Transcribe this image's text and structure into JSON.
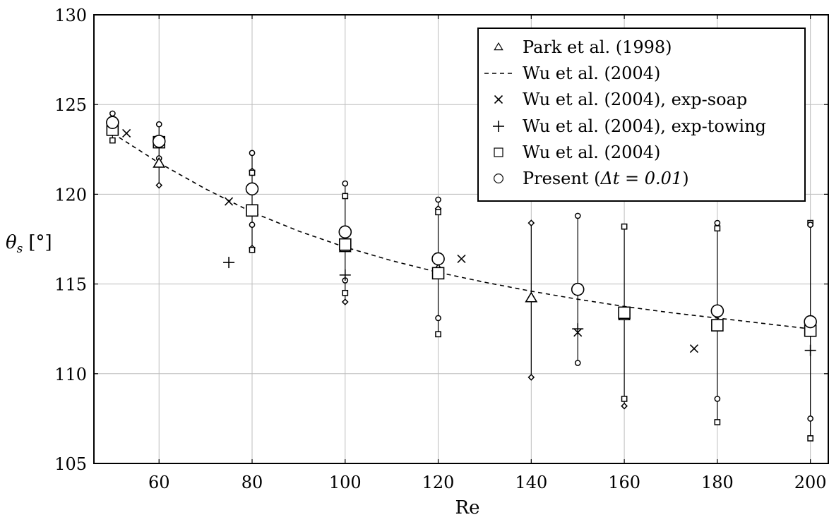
{
  "chart_data": {
    "type": "scatter",
    "title": "",
    "xlabel": "Re",
    "ylabel": "θs [°]",
    "ylabel_sub": "s",
    "ylabel_unit": "[°]",
    "xlim": [
      46,
      204
    ],
    "ylim": [
      105,
      130
    ],
    "xticks": [
      60,
      80,
      100,
      120,
      140,
      160,
      180,
      200
    ],
    "yticks": [
      105,
      110,
      115,
      120,
      125,
      130
    ],
    "grid": true,
    "legend_position": "top-right",
    "series": [
      {
        "name": "Park et al. (1998)",
        "marker": "triangle",
        "points": [
          [
            50,
            123.6
          ],
          [
            60,
            121.7
          ],
          [
            80,
            119.1
          ],
          [
            100,
            117.0
          ],
          [
            120,
            115.8
          ],
          [
            140,
            114.2
          ],
          [
            160,
            113.2
          ]
        ]
      },
      {
        "name": "Wu et al. (2004)",
        "marker": "dashed-line",
        "points": [
          [
            50,
            123.4
          ],
          [
            60,
            121.75
          ],
          [
            70,
            120.3
          ],
          [
            80,
            119.0
          ],
          [
            90,
            117.95
          ],
          [
            100,
            117.05
          ],
          [
            110,
            116.3
          ],
          [
            120,
            115.65
          ],
          [
            130,
            115.1
          ],
          [
            140,
            114.6
          ],
          [
            150,
            114.15
          ],
          [
            160,
            113.75
          ],
          [
            170,
            113.4
          ],
          [
            180,
            113.1
          ],
          [
            190,
            112.8
          ],
          [
            200,
            112.5
          ]
        ]
      },
      {
        "name": "Wu et al. (2004), exp-soap",
        "marker": "x",
        "points": [
          [
            53,
            123.4
          ],
          [
            75,
            119.6
          ],
          [
            125,
            116.4
          ],
          [
            150,
            112.3
          ],
          [
            175,
            111.4
          ]
        ]
      },
      {
        "name": "Wu et al. (2004), exp-towing",
        "marker": "plus",
        "points": [
          [
            75,
            116.2
          ],
          [
            100,
            115.5
          ],
          [
            150,
            112.5
          ],
          [
            200,
            111.3
          ]
        ]
      },
      {
        "name": "Wu et al. (2004)",
        "marker": "square",
        "points": [
          [
            50,
            123.6
          ],
          [
            60,
            122.9
          ],
          [
            80,
            119.1
          ],
          [
            100,
            117.2
          ],
          [
            120,
            115.6
          ],
          [
            160,
            113.4
          ],
          [
            180,
            112.7
          ],
          [
            200,
            112.4
          ]
        ]
      },
      {
        "name": "Present (Δt = 0.01)",
        "legend_prefix": "Present (",
        "legend_math": "Δt = 0.01",
        "legend_suffix": ")",
        "marker": "circle",
        "points": [
          [
            50,
            124.0
          ],
          [
            60,
            122.95
          ],
          [
            80,
            120.3
          ],
          [
            100,
            117.9
          ],
          [
            120,
            116.4
          ],
          [
            150,
            114.7
          ],
          [
            180,
            113.5
          ],
          [
            200,
            112.9
          ]
        ]
      }
    ],
    "range_bars": [
      {
        "x": 50,
        "min": 123.0,
        "max": 124.5
      },
      {
        "x": 60,
        "min": 120.5,
        "max": 123.9
      },
      {
        "x": 80,
        "min": 116.9,
        "max": 122.3
      },
      {
        "x": 100,
        "min": 114.0,
        "max": 120.6
      },
      {
        "x": 120,
        "min": 112.2,
        "max": 119.7
      },
      {
        "x": 140,
        "min": 109.8,
        "max": 118.4
      },
      {
        "x": 150,
        "min": 110.6,
        "max": 118.8
      },
      {
        "x": 160,
        "min": 108.2,
        "max": 118.2
      },
      {
        "x": 180,
        "min": 107.3,
        "max": 118.4
      },
      {
        "x": 200,
        "min": 106.4,
        "max": 118.4
      }
    ],
    "range_markers": [
      {
        "x": 50,
        "y": 124.5,
        "marker": "small-circle"
      },
      {
        "x": 50,
        "y": 123.6,
        "marker": "small-circle"
      },
      {
        "x": 50,
        "y": 123.0,
        "marker": "small-square"
      },
      {
        "x": 60,
        "y": 123.9,
        "marker": "small-circle"
      },
      {
        "x": 60,
        "y": 122.9,
        "marker": "small-diamond"
      },
      {
        "x": 60,
        "y": 122.0,
        "marker": "small-circle"
      },
      {
        "x": 60,
        "y": 120.5,
        "marker": "small-diamond"
      },
      {
        "x": 80,
        "y": 122.3,
        "marker": "small-circle"
      },
      {
        "x": 80,
        "y": 121.3,
        "marker": "small-diamond"
      },
      {
        "x": 80,
        "y": 121.2,
        "marker": "small-square"
      },
      {
        "x": 80,
        "y": 118.3,
        "marker": "small-circle"
      },
      {
        "x": 80,
        "y": 117.0,
        "marker": "small-diamond"
      },
      {
        "x": 80,
        "y": 116.9,
        "marker": "small-square"
      },
      {
        "x": 100,
        "y": 120.6,
        "marker": "small-circle"
      },
      {
        "x": 100,
        "y": 119.9,
        "marker": "small-square"
      },
      {
        "x": 100,
        "y": 114.5,
        "marker": "small-square"
      },
      {
        "x": 100,
        "y": 115.2,
        "marker": "small-circle"
      },
      {
        "x": 100,
        "y": 114.0,
        "marker": "small-diamond"
      },
      {
        "x": 120,
        "y": 119.7,
        "marker": "small-circle"
      },
      {
        "x": 120,
        "y": 119.2,
        "marker": "small-diamond"
      },
      {
        "x": 120,
        "y": 119.0,
        "marker": "small-square"
      },
      {
        "x": 120,
        "y": 113.1,
        "marker": "small-circle"
      },
      {
        "x": 120,
        "y": 112.2,
        "marker": "small-square"
      },
      {
        "x": 140,
        "y": 118.4,
        "marker": "small-diamond"
      },
      {
        "x": 140,
        "y": 109.8,
        "marker": "small-diamond"
      },
      {
        "x": 150,
        "y": 118.8,
        "marker": "small-circle"
      },
      {
        "x": 150,
        "y": 110.6,
        "marker": "small-circle"
      },
      {
        "x": 160,
        "y": 118.2,
        "marker": "small-square"
      },
      {
        "x": 160,
        "y": 108.6,
        "marker": "small-square"
      },
      {
        "x": 160,
        "y": 108.2,
        "marker": "small-diamond"
      },
      {
        "x": 180,
        "y": 118.4,
        "marker": "small-circle"
      },
      {
        "x": 180,
        "y": 118.1,
        "marker": "small-square"
      },
      {
        "x": 180,
        "y": 108.6,
        "marker": "small-circle"
      },
      {
        "x": 180,
        "y": 107.3,
        "marker": "small-square"
      },
      {
        "x": 200,
        "y": 118.4,
        "marker": "small-square"
      },
      {
        "x": 200,
        "y": 118.3,
        "marker": "small-circle"
      },
      {
        "x": 200,
        "y": 107.5,
        "marker": "small-circle"
      },
      {
        "x": 200,
        "y": 106.4,
        "marker": "small-square"
      }
    ]
  }
}
